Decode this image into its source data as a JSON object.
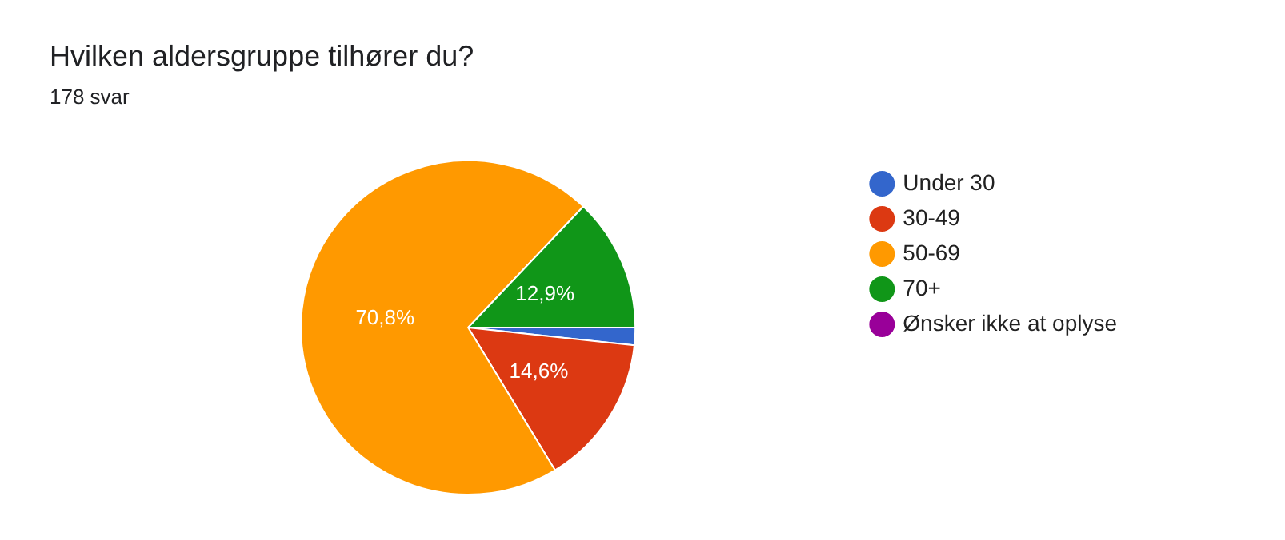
{
  "chart_data": {
    "type": "pie",
    "title": "Hvilken aldersgruppe tilhører du?",
    "subtitle": "178 svar",
    "categories": [
      "Under 30",
      "30-49",
      "50-69",
      "70+",
      "Ønsker ikke at oplyse"
    ],
    "values": [
      1.7,
      14.6,
      70.8,
      12.9,
      0
    ],
    "colors": [
      "#3366cc",
      "#dc3912",
      "#ff9900",
      "#109618",
      "#990099"
    ],
    "value_labels": [
      null,
      "14,6%",
      "70,8%",
      "12,9%",
      null
    ],
    "legend": "right"
  }
}
